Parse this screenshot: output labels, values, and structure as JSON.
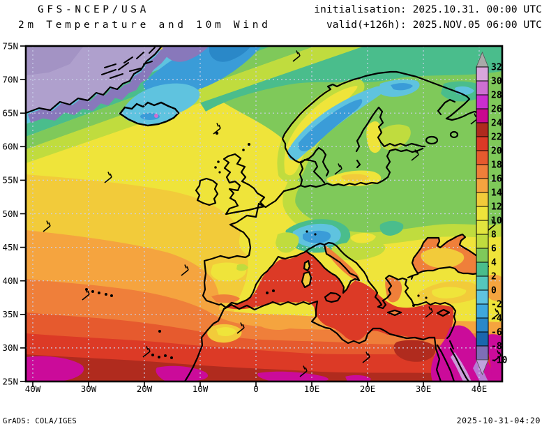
{
  "header": {
    "model": "GFS-NCEP/USA",
    "product": "2m Temperature and 10m Wind",
    "init_label": "initialisation: 2025.10.31. 00:00 UTC",
    "valid_label": "valid(+126h): 2025.NOV.05 06:00 UTC"
  },
  "footer": {
    "credit": "GrADS: COLA/IGES",
    "generated": "2025-10-31-04:20"
  },
  "axes": {
    "lat_labels": [
      "75N",
      "70N",
      "65N",
      "60N",
      "55N",
      "50N",
      "45N",
      "40N",
      "35N",
      "30N",
      "25N"
    ],
    "lon_labels": [
      "40W",
      "30W",
      "20W",
      "10W",
      "0",
      "10E",
      "20E",
      "30E",
      "40E"
    ]
  },
  "colorbar": {
    "levels": [
      32,
      30,
      28,
      26,
      24,
      22,
      20,
      18,
      16,
      14,
      12,
      10,
      8,
      6,
      4,
      2,
      0,
      -2,
      -4,
      -6,
      -8,
      -10
    ],
    "box_colors": [
      "#D9A6DB",
      "#CE6FD2",
      "#CB2ECF",
      "#C9098E",
      "#AF2A1E",
      "#DC3A26",
      "#E65A2E",
      "#EF7F3A",
      "#F5A43F",
      "#F2CB3A",
      "#EFE43A",
      "#E2E53E",
      "#C0DC3E",
      "#7FC95A",
      "#4ABD8C",
      "#55C6BC",
      "#5FC3DF",
      "#3FA8DC",
      "#2A88C8",
      "#1A66AE",
      "#7E6EB6"
    ],
    "arrow_top_color": "#A9A9A9",
    "arrow_bottom_color": "#BFA3DC"
  }
}
